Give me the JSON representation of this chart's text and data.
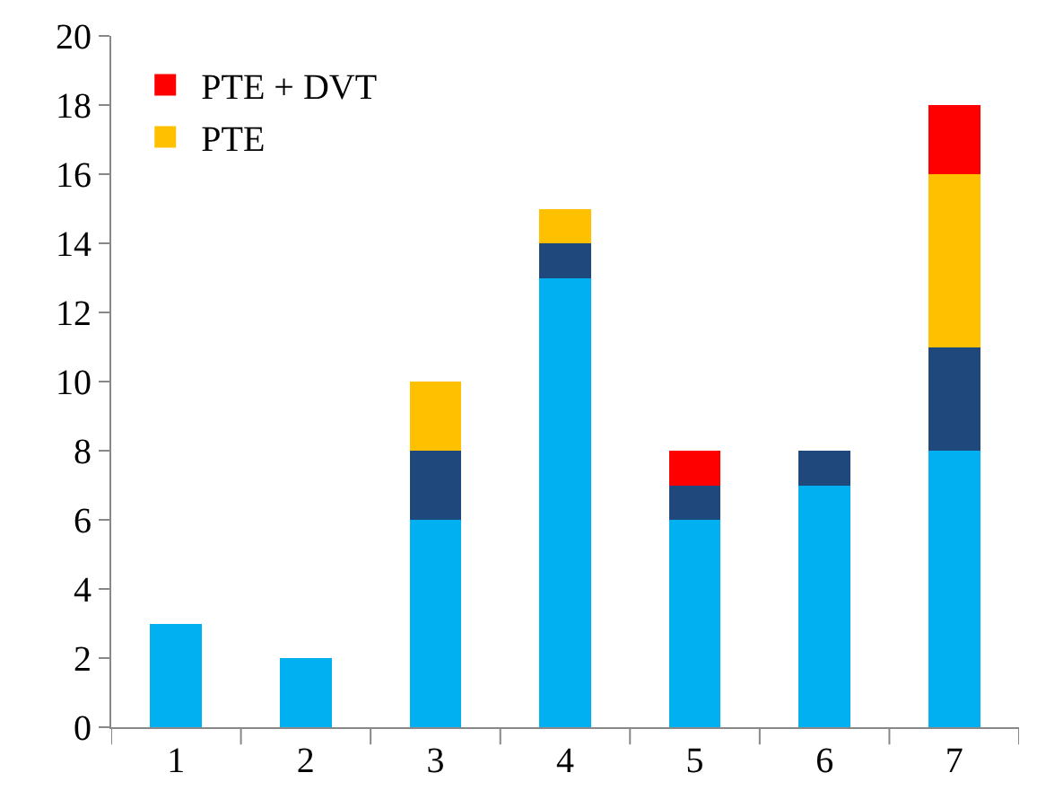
{
  "chart_data": {
    "type": "bar",
    "stacked": true,
    "categories": [
      "1",
      "2",
      "3",
      "4",
      "5",
      "6",
      "7"
    ],
    "series": [
      {
        "color": "#00b0f0",
        "values": [
          3,
          2,
          6,
          13,
          6,
          7,
          8
        ]
      },
      {
        "color": "#1f497d",
        "values": [
          0,
          0,
          2,
          1,
          1,
          1,
          3
        ]
      },
      {
        "name": "PTE",
        "color": "#ffc000",
        "values": [
          0,
          0,
          2,
          1,
          0,
          0,
          5
        ]
      },
      {
        "name": "PTE + DVT",
        "color": "#ff0000",
        "values": [
          0,
          0,
          0,
          0,
          1,
          0,
          2
        ]
      }
    ],
    "ylim": [
      0,
      20
    ],
    "yticks": [
      0,
      2,
      4,
      6,
      8,
      10,
      12,
      14,
      16,
      18,
      20
    ],
    "grid": false,
    "legend": "top left"
  }
}
